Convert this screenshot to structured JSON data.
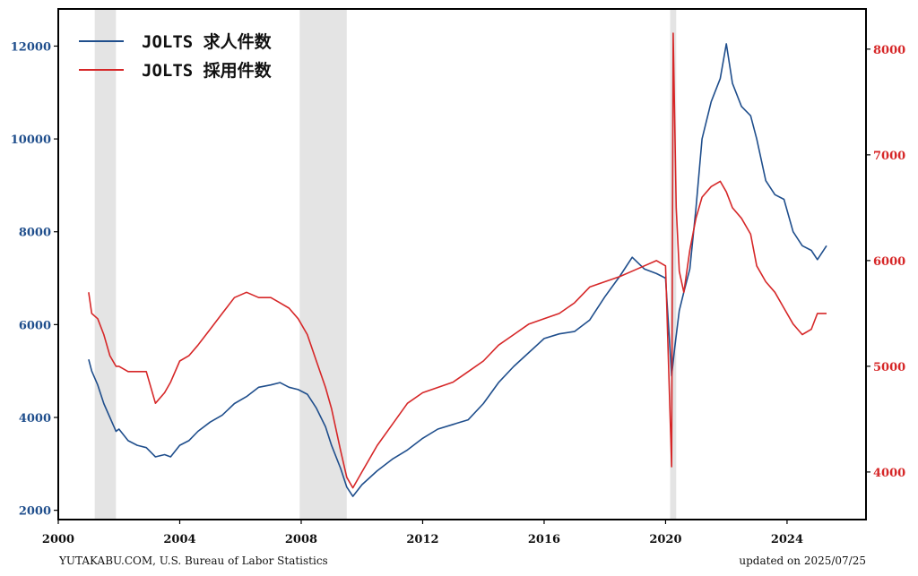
{
  "chart_data": {
    "type": "line",
    "title": "",
    "xlabel": "",
    "ylabel_left": "",
    "ylabel_right": "",
    "xlim": [
      2000,
      2026.6
    ],
    "ylim_left": [
      1800,
      12800
    ],
    "ylim_right": [
      3550,
      8380
    ],
    "x_ticks": [
      2000,
      2004,
      2008,
      2012,
      2016,
      2020,
      2024
    ],
    "x_tick_labels": [
      "2000",
      "2004",
      "2008",
      "2012",
      "2016",
      "2020",
      "2024"
    ],
    "y_left_ticks": [
      2000,
      4000,
      6000,
      8000,
      10000,
      12000
    ],
    "y_left_tick_labels": [
      "2000",
      "4000",
      "6000",
      "8000",
      "10000",
      "12000"
    ],
    "y_right_ticks": [
      4000,
      5000,
      6000,
      7000,
      8000
    ],
    "y_right_tick_labels": [
      "4000",
      "5000",
      "6000",
      "7000",
      "8000"
    ],
    "grid": false,
    "legend_position": "top-left",
    "recessions": [
      [
        2001.2,
        2001.9
      ],
      [
        2007.95,
        2009.5
      ],
      [
        2020.15,
        2020.35
      ]
    ],
    "series": [
      {
        "name": "JOLTS 求人件数",
        "axis": "left",
        "color": "#1f4e8c",
        "x": [
          2001.0,
          2001.1,
          2001.3,
          2001.5,
          2001.7,
          2001.9,
          2002.0,
          2002.3,
          2002.6,
          2002.9,
          2003.2,
          2003.5,
          2003.7,
          2004.0,
          2004.3,
          2004.6,
          2005.0,
          2005.4,
          2005.8,
          2006.2,
          2006.6,
          2007.0,
          2007.3,
          2007.6,
          2007.9,
          2008.2,
          2008.5,
          2008.8,
          2009.0,
          2009.3,
          2009.5,
          2009.7,
          2010.0,
          2010.5,
          2011.0,
          2011.5,
          2012.0,
          2012.5,
          2013.0,
          2013.5,
          2014.0,
          2014.5,
          2015.0,
          2015.5,
          2016.0,
          2016.5,
          2017.0,
          2017.5,
          2018.0,
          2018.5,
          2018.9,
          2019.3,
          2019.7,
          2020.0,
          2020.2,
          2020.3,
          2020.45,
          2020.6,
          2020.8,
          2021.0,
          2021.2,
          2021.5,
          2021.8,
          2022.0,
          2022.2,
          2022.5,
          2022.8,
          2023.0,
          2023.3,
          2023.6,
          2023.9,
          2024.2,
          2024.5,
          2024.8,
          2025.0,
          2025.3
        ],
        "values": [
          5250,
          5000,
          4700,
          4300,
          4000,
          3700,
          3750,
          3500,
          3400,
          3350,
          3150,
          3200,
          3150,
          3400,
          3500,
          3700,
          3900,
          4050,
          4300,
          4450,
          4650,
          4700,
          4750,
          4650,
          4600,
          4500,
          4200,
          3800,
          3400,
          2900,
          2500,
          2300,
          2550,
          2850,
          3100,
          3300,
          3550,
          3750,
          3850,
          3950,
          4300,
          4750,
          5100,
          5400,
          5700,
          5800,
          5850,
          6100,
          6600,
          7050,
          7450,
          7200,
          7100,
          7000,
          4900,
          5500,
          6300,
          6700,
          7200,
          8500,
          10000,
          10800,
          11300,
          12050,
          11200,
          10700,
          10500,
          10000,
          9100,
          8800,
          8700,
          8000,
          7700,
          7600,
          7400,
          7700
        ]
      },
      {
        "name": "JOLTS 採用件数",
        "axis": "right",
        "color": "#d62728",
        "x": [
          2001.0,
          2001.1,
          2001.3,
          2001.5,
          2001.7,
          2001.9,
          2002.0,
          2002.3,
          2002.6,
          2002.9,
          2003.2,
          2003.5,
          2003.7,
          2004.0,
          2004.3,
          2004.6,
          2005.0,
          2005.4,
          2005.8,
          2006.2,
          2006.6,
          2007.0,
          2007.3,
          2007.6,
          2007.9,
          2008.2,
          2008.5,
          2008.8,
          2009.0,
          2009.3,
          2009.5,
          2009.7,
          2010.0,
          2010.5,
          2011.0,
          2011.5,
          2012.0,
          2012.5,
          2013.0,
          2013.5,
          2014.0,
          2014.5,
          2015.0,
          2015.5,
          2016.0,
          2016.5,
          2017.0,
          2017.5,
          2018.0,
          2018.5,
          2018.9,
          2019.3,
          2019.7,
          2020.0,
          2020.2,
          2020.25,
          2020.35,
          2020.45,
          2020.6,
          2020.8,
          2021.0,
          2021.2,
          2021.5,
          2021.8,
          2022.0,
          2022.2,
          2022.5,
          2022.8,
          2023.0,
          2023.3,
          2023.6,
          2023.9,
          2024.2,
          2024.5,
          2024.8,
          2025.0,
          2025.3
        ],
        "values": [
          5700,
          5500,
          5450,
          5300,
          5100,
          5000,
          5000,
          4950,
          4950,
          4950,
          4650,
          4750,
          4850,
          5050,
          5100,
          5200,
          5350,
          5500,
          5650,
          5700,
          5650,
          5650,
          5600,
          5550,
          5450,
          5300,
          5050,
          4800,
          4600,
          4200,
          3950,
          3850,
          4000,
          4250,
          4450,
          4650,
          4750,
          4800,
          4850,
          4950,
          5050,
          5200,
          5300,
          5400,
          5450,
          5500,
          5600,
          5750,
          5800,
          5850,
          5900,
          5950,
          6000,
          5950,
          4050,
          8150,
          6500,
          5900,
          5700,
          6100,
          6400,
          6600,
          6700,
          6750,
          6650,
          6500,
          6400,
          6250,
          5950,
          5800,
          5700,
          5550,
          5400,
          5300,
          5350,
          5500,
          5500
        ]
      }
    ]
  },
  "footer": {
    "source": "YUTAKABU.COM, U.S. Bureau of Labor Statistics",
    "updated": "updated on 2025/07/25"
  }
}
